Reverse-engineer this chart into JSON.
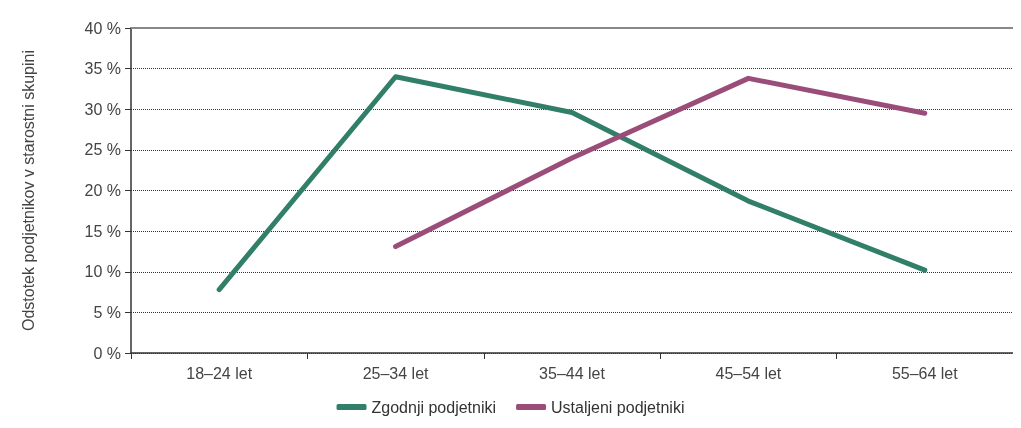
{
  "chart_data": {
    "type": "line",
    "ylabel": "Odstotek podjetnikov v starostni skupini",
    "categories": [
      "18–24 let",
      "25–34 let",
      "35–44 let",
      "45–54 let",
      "55–64 let"
    ],
    "series": [
      {
        "name": "Zgodnji podjetniki",
        "color": "#317f69",
        "values": [
          7.8,
          34.0,
          29.6,
          18.7,
          10.2
        ]
      },
      {
        "name": "Ustaljeni podjetniki",
        "color": "#9a4d78",
        "values": [
          null,
          13.1,
          24.0,
          33.8,
          29.5
        ]
      }
    ],
    "ylim": [
      0,
      40
    ],
    "yticks": [
      {
        "value": 0,
        "label": "0 %"
      },
      {
        "value": 5,
        "label": "5 %"
      },
      {
        "value": 10,
        "label": "10 %"
      },
      {
        "value": 15,
        "label": "15 %"
      },
      {
        "value": 20,
        "label": "20 %"
      },
      {
        "value": 25,
        "label": "25 %"
      },
      {
        "value": 30,
        "label": "30 %"
      },
      {
        "value": 35,
        "label": "35 %"
      },
      {
        "value": 40,
        "label": "40 %"
      }
    ],
    "grid": "y",
    "legend": "bottom",
    "marker": "none",
    "line_style": "solid"
  }
}
